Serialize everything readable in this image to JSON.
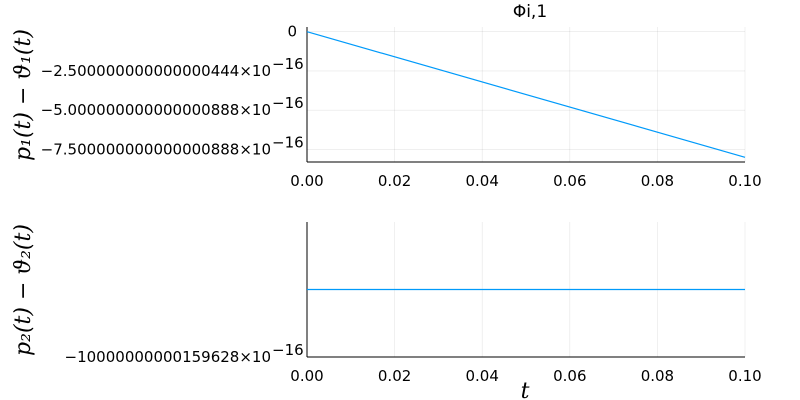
{
  "chart_data": [
    {
      "type": "line",
      "title": "Φi,1",
      "ylabel": "p₁(t) − ϑ₁(t)",
      "xlabel": "",
      "xlim": [
        0.0,
        0.1
      ],
      "ylim": [
        -8.3e-16,
        3e-17
      ],
      "x_ticks": [
        "0.00",
        "0.02",
        "0.04",
        "0.06",
        "0.08",
        "0.10"
      ],
      "y_ticks": [
        {
          "value": 0,
          "label": "0"
        },
        {
          "value": -2.5e-16,
          "label": "−2.500000000000000444×10"
        },
        {
          "value": -5e-16,
          "label": "−5.000000000000000888×10"
        },
        {
          "value": -7.5e-16,
          "label": "−7.500000000000000888×10"
        }
      ],
      "y_exponent": "−16",
      "grid": true,
      "series": [
        {
          "x": [
            0.0,
            0.1
          ],
          "y": [
            0.0,
            -8e-16
          ],
          "color": "#009AFA"
        }
      ]
    },
    {
      "type": "line",
      "title": "",
      "ylabel": "p₂(t) − ϑ₂(t)",
      "xlabel": "t",
      "xlim": [
        0.0,
        0.1
      ],
      "ylim": [
        0,
        1
      ],
      "x_ticks": [
        "0.00",
        "0.02",
        "0.04",
        "0.06",
        "0.08",
        "0.10"
      ],
      "y_ticks": [
        {
          "value": 0,
          "label": "−10000000000159628×10"
        }
      ],
      "y_exponent": "−16",
      "grid": true,
      "series": [
        {
          "x": [
            0.0,
            0.1
          ],
          "y": [
            0.5,
            0.5
          ],
          "color": "#009AFA"
        }
      ]
    }
  ]
}
